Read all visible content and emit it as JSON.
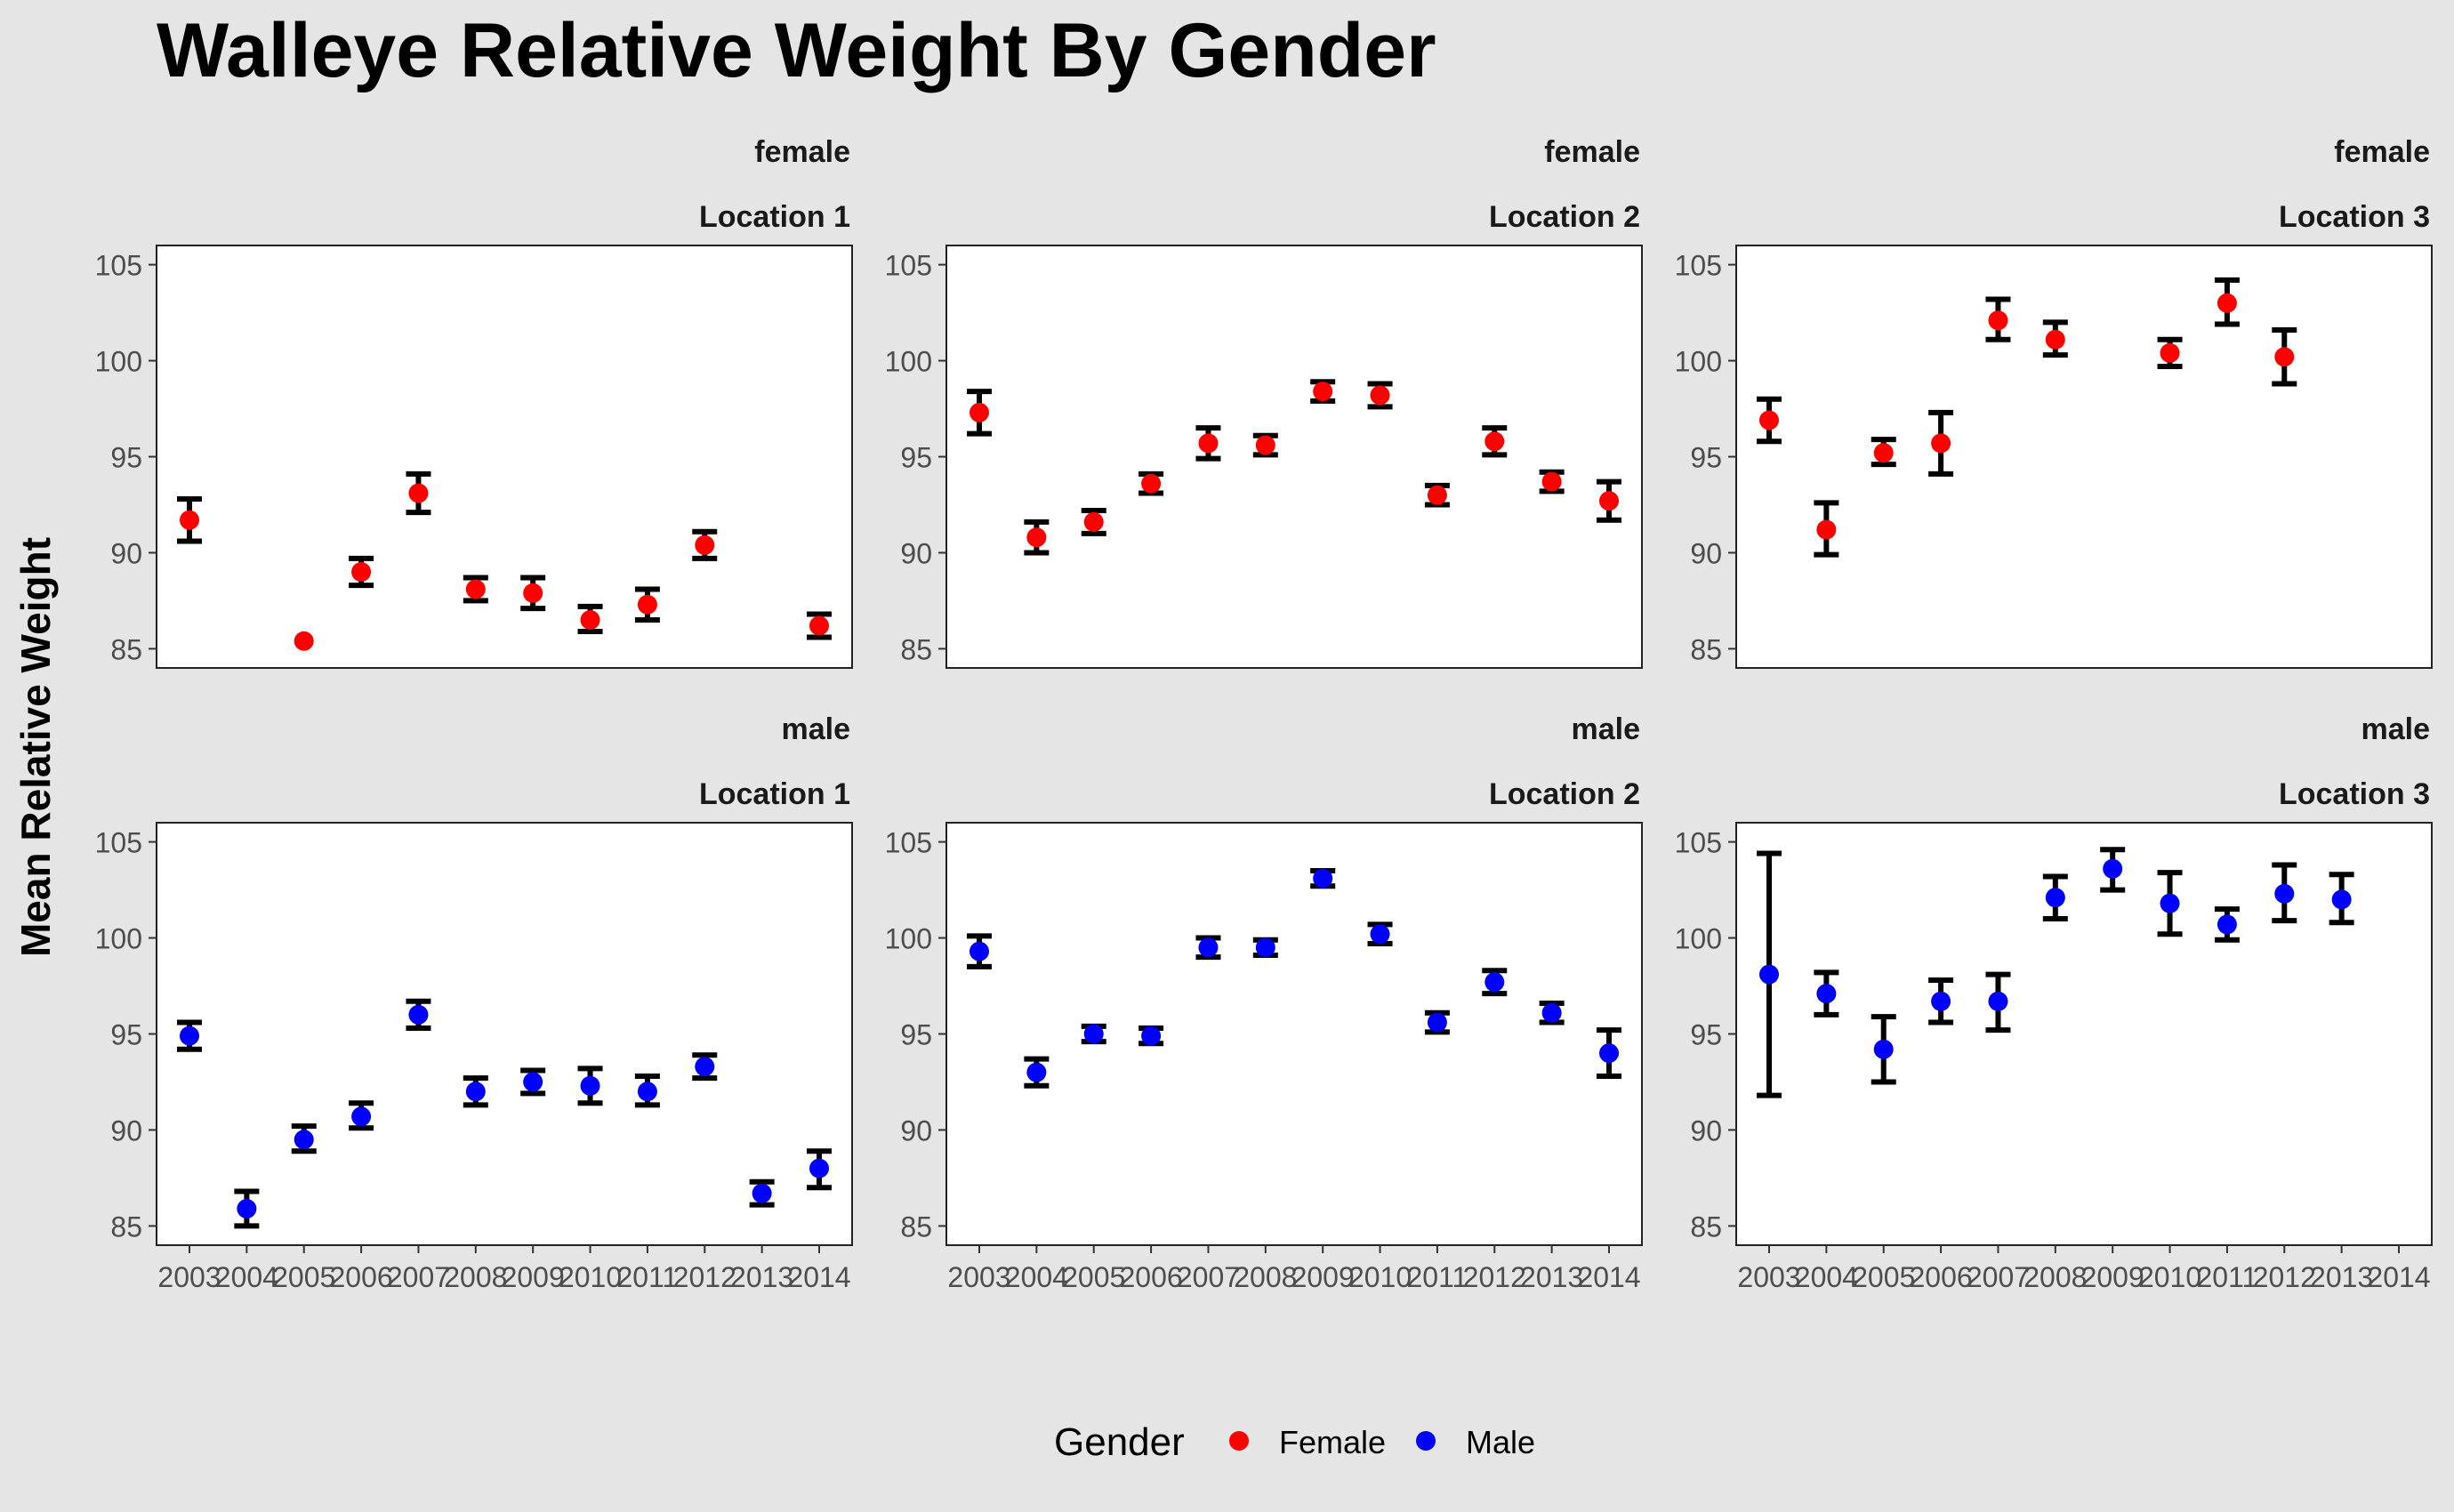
{
  "chart": {
    "title": "Walleye Relative Weight By Gender",
    "ylabel": "Mean Relative Weight",
    "legend": {
      "title": "Gender",
      "items": [
        {
          "label": "Female",
          "color": "#ff0000"
        },
        {
          "label": "Male",
          "color": "#0000ff"
        }
      ]
    }
  },
  "chart_data": {
    "type": "scatter",
    "title": "Walleye Relative Weight By Gender",
    "xlabel": "",
    "ylabel": "Mean Relative Weight",
    "x_categories": [
      "2003",
      "2004",
      "2005",
      "2006",
      "2007",
      "2008",
      "2009",
      "2010",
      "2011",
      "2012",
      "2013",
      "2014"
    ],
    "ylim": [
      84,
      106
    ],
    "yticks": [
      85,
      90,
      95,
      100,
      105
    ],
    "grid": false,
    "legend_position": "bottom",
    "series_colors": {
      "female": "#ff0000",
      "male": "#0000ff"
    },
    "panels": [
      {
        "gender": "female",
        "location": "Location 1",
        "color": "#ff0000",
        "points": [
          {
            "x": "2003",
            "y": 91.7,
            "ymin": 90.6,
            "ymax": 92.8
          },
          {
            "x": "2005",
            "y": 85.4,
            "ymin": 85.4,
            "ymax": 85.4
          },
          {
            "x": "2006",
            "y": 89.0,
            "ymin": 88.3,
            "ymax": 89.7
          },
          {
            "x": "2007",
            "y": 93.1,
            "ymin": 92.1,
            "ymax": 94.1
          },
          {
            "x": "2008",
            "y": 88.1,
            "ymin": 87.5,
            "ymax": 88.7
          },
          {
            "x": "2009",
            "y": 87.9,
            "ymin": 87.1,
            "ymax": 88.7
          },
          {
            "x": "2010",
            "y": 86.5,
            "ymin": 85.9,
            "ymax": 87.2
          },
          {
            "x": "2011",
            "y": 87.3,
            "ymin": 86.5,
            "ymax": 88.1
          },
          {
            "x": "2012",
            "y": 90.4,
            "ymin": 89.7,
            "ymax": 91.1
          },
          {
            "x": "2014",
            "y": 86.2,
            "ymin": 85.6,
            "ymax": 86.8
          }
        ]
      },
      {
        "gender": "female",
        "location": "Location 2",
        "color": "#ff0000",
        "points": [
          {
            "x": "2003",
            "y": 97.3,
            "ymin": 96.2,
            "ymax": 98.4
          },
          {
            "x": "2004",
            "y": 90.8,
            "ymin": 90.0,
            "ymax": 91.6
          },
          {
            "x": "2005",
            "y": 91.6,
            "ymin": 91.0,
            "ymax": 92.2
          },
          {
            "x": "2006",
            "y": 93.6,
            "ymin": 93.1,
            "ymax": 94.1
          },
          {
            "x": "2007",
            "y": 95.7,
            "ymin": 94.9,
            "ymax": 96.5
          },
          {
            "x": "2008",
            "y": 95.6,
            "ymin": 95.1,
            "ymax": 96.1
          },
          {
            "x": "2009",
            "y": 98.4,
            "ymin": 97.9,
            "ymax": 98.9
          },
          {
            "x": "2010",
            "y": 98.2,
            "ymin": 97.6,
            "ymax": 98.8
          },
          {
            "x": "2011",
            "y": 93.0,
            "ymin": 92.5,
            "ymax": 93.5
          },
          {
            "x": "2012",
            "y": 95.8,
            "ymin": 95.1,
            "ymax": 96.5
          },
          {
            "x": "2013",
            "y": 93.7,
            "ymin": 93.2,
            "ymax": 94.2
          },
          {
            "x": "2014",
            "y": 92.7,
            "ymin": 91.7,
            "ymax": 93.7
          }
        ]
      },
      {
        "gender": "female",
        "location": "Location 3",
        "color": "#ff0000",
        "points": [
          {
            "x": "2003",
            "y": 96.9,
            "ymin": 95.8,
            "ymax": 98.0
          },
          {
            "x": "2004",
            "y": 91.2,
            "ymin": 89.9,
            "ymax": 92.6
          },
          {
            "x": "2005",
            "y": 95.2,
            "ymin": 94.6,
            "ymax": 95.9
          },
          {
            "x": "2006",
            "y": 95.7,
            "ymin": 94.1,
            "ymax": 97.3
          },
          {
            "x": "2007",
            "y": 102.1,
            "ymin": 101.1,
            "ymax": 103.2
          },
          {
            "x": "2008",
            "y": 101.1,
            "ymin": 100.3,
            "ymax": 102.0
          },
          {
            "x": "2010",
            "y": 100.4,
            "ymin": 99.7,
            "ymax": 101.1
          },
          {
            "x": "2011",
            "y": 103.0,
            "ymin": 101.9,
            "ymax": 104.2
          },
          {
            "x": "2012",
            "y": 100.2,
            "ymin": 98.8,
            "ymax": 101.6
          }
        ]
      },
      {
        "gender": "male",
        "location": "Location 1",
        "color": "#0000ff",
        "points": [
          {
            "x": "2003",
            "y": 94.9,
            "ymin": 94.2,
            "ymax": 95.6
          },
          {
            "x": "2004",
            "y": 85.9,
            "ymin": 85.0,
            "ymax": 86.8
          },
          {
            "x": "2005",
            "y": 89.5,
            "ymin": 88.9,
            "ymax": 90.2
          },
          {
            "x": "2006",
            "y": 90.7,
            "ymin": 90.1,
            "ymax": 91.4
          },
          {
            "x": "2007",
            "y": 96.0,
            "ymin": 95.3,
            "ymax": 96.7
          },
          {
            "x": "2008",
            "y": 92.0,
            "ymin": 91.3,
            "ymax": 92.7
          },
          {
            "x": "2009",
            "y": 92.5,
            "ymin": 91.9,
            "ymax": 93.1
          },
          {
            "x": "2010",
            "y": 92.3,
            "ymin": 91.4,
            "ymax": 93.2
          },
          {
            "x": "2011",
            "y": 92.0,
            "ymin": 91.3,
            "ymax": 92.8
          },
          {
            "x": "2012",
            "y": 93.3,
            "ymin": 92.7,
            "ymax": 93.9
          },
          {
            "x": "2013",
            "y": 86.7,
            "ymin": 86.1,
            "ymax": 87.3
          },
          {
            "x": "2014",
            "y": 88.0,
            "ymin": 87.0,
            "ymax": 88.9
          }
        ]
      },
      {
        "gender": "male",
        "location": "Location 2",
        "color": "#0000ff",
        "points": [
          {
            "x": "2003",
            "y": 99.3,
            "ymin": 98.5,
            "ymax": 100.1
          },
          {
            "x": "2004",
            "y": 93.0,
            "ymin": 92.3,
            "ymax": 93.7
          },
          {
            "x": "2005",
            "y": 95.0,
            "ymin": 94.6,
            "ymax": 95.4
          },
          {
            "x": "2006",
            "y": 94.9,
            "ymin": 94.5,
            "ymax": 95.3
          },
          {
            "x": "2007",
            "y": 99.5,
            "ymin": 99.0,
            "ymax": 100.0
          },
          {
            "x": "2008",
            "y": 99.5,
            "ymin": 99.1,
            "ymax": 99.9
          },
          {
            "x": "2009",
            "y": 103.1,
            "ymin": 102.7,
            "ymax": 103.5
          },
          {
            "x": "2010",
            "y": 100.2,
            "ymin": 99.7,
            "ymax": 100.7
          },
          {
            "x": "2011",
            "y": 95.6,
            "ymin": 95.1,
            "ymax": 96.1
          },
          {
            "x": "2012",
            "y": 97.7,
            "ymin": 97.1,
            "ymax": 98.3
          },
          {
            "x": "2013",
            "y": 96.1,
            "ymin": 95.6,
            "ymax": 96.6
          },
          {
            "x": "2014",
            "y": 94.0,
            "ymin": 92.8,
            "ymax": 95.2
          }
        ]
      },
      {
        "gender": "male",
        "location": "Location 3",
        "color": "#0000ff",
        "points": [
          {
            "x": "2003",
            "y": 98.1,
            "ymin": 91.8,
            "ymax": 104.4
          },
          {
            "x": "2004",
            "y": 97.1,
            "ymin": 96.0,
            "ymax": 98.2
          },
          {
            "x": "2005",
            "y": 94.2,
            "ymin": 92.5,
            "ymax": 95.9
          },
          {
            "x": "2006",
            "y": 96.7,
            "ymin": 95.6,
            "ymax": 97.8
          },
          {
            "x": "2007",
            "y": 96.7,
            "ymin": 95.2,
            "ymax": 98.1
          },
          {
            "x": "2008",
            "y": 102.1,
            "ymin": 101.0,
            "ymax": 103.2
          },
          {
            "x": "2009",
            "y": 103.6,
            "ymin": 102.5,
            "ymax": 104.6
          },
          {
            "x": "2010",
            "y": 101.8,
            "ymin": 100.2,
            "ymax": 103.4
          },
          {
            "x": "2011",
            "y": 100.7,
            "ymin": 99.9,
            "ymax": 101.5
          },
          {
            "x": "2012",
            "y": 102.3,
            "ymin": 100.9,
            "ymax": 103.8
          },
          {
            "x": "2013",
            "y": 102.0,
            "ymin": 100.8,
            "ymax": 103.3
          }
        ]
      }
    ]
  }
}
